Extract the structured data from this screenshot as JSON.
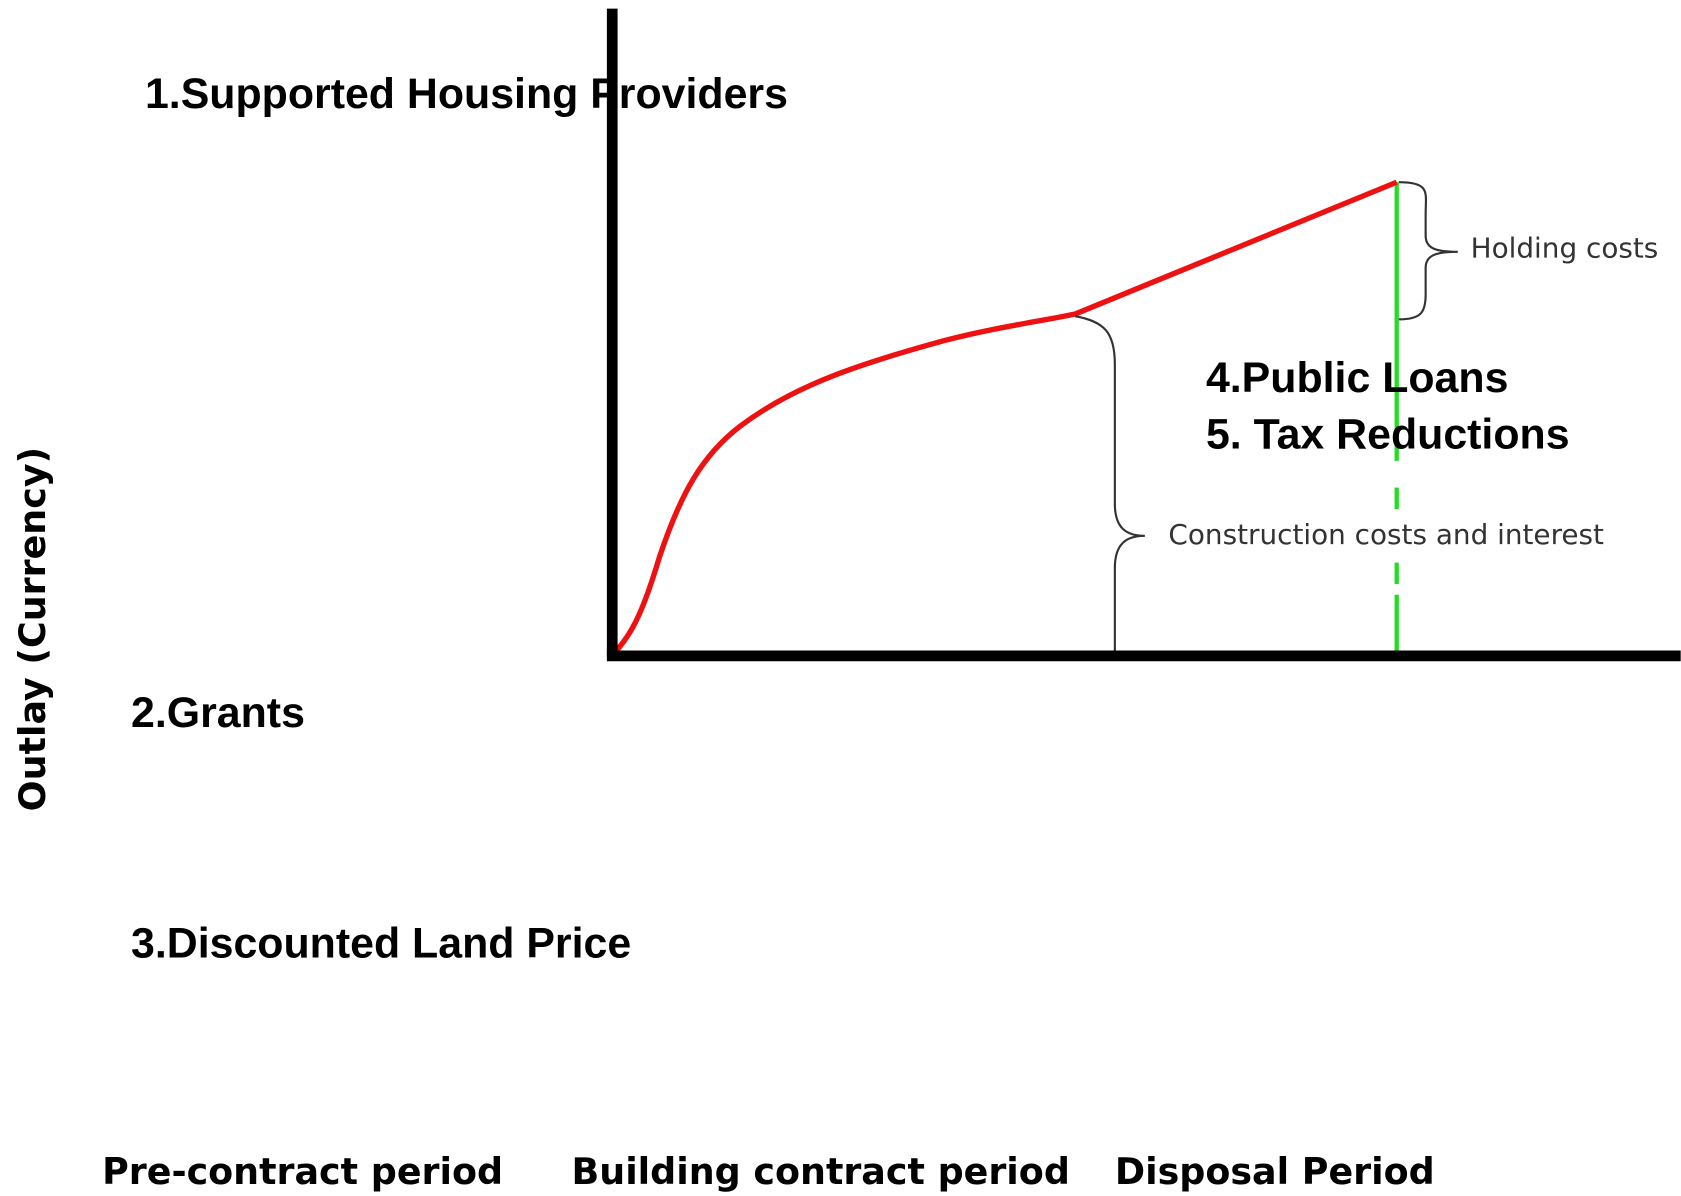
{
  "title": "1.Supported Housing Providers",
  "y_axis_label": "Outlay (Currency)",
  "annotations": {
    "holding": "Holding costs",
    "construction": "Construction costs and interest"
  },
  "instruments": [
    "2.Grants",
    "3.Discounted Land Price",
    "4.Public Loans",
    "5. Tax Reductions"
  ],
  "periods": [
    "Pre-contract period",
    "Building contract period",
    "Disposal Period"
  ]
}
